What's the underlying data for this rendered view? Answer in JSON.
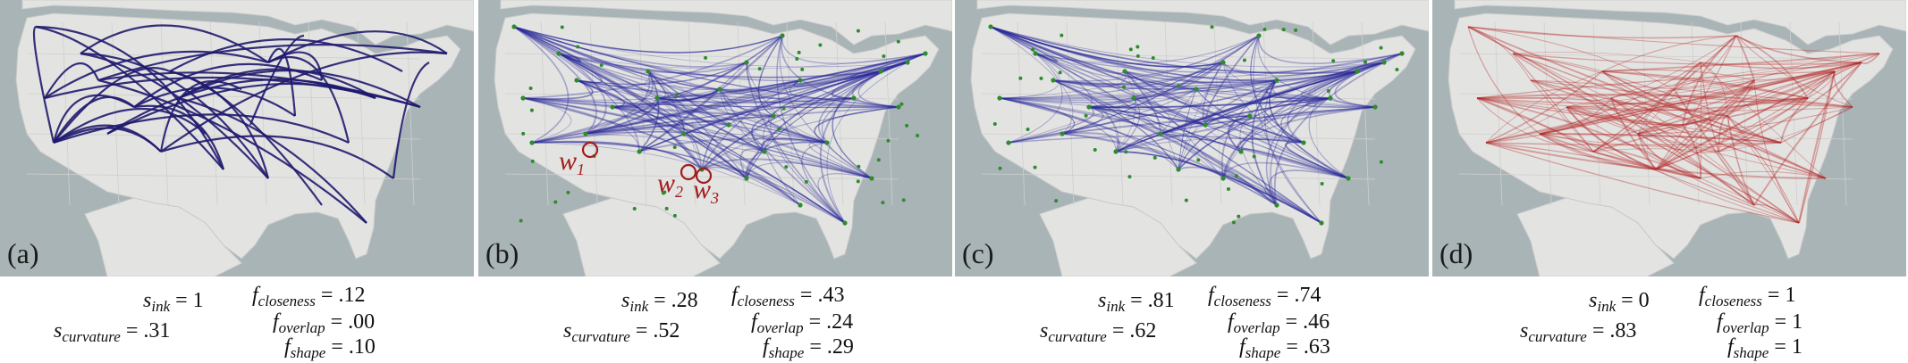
{
  "panels": [
    {
      "label": "(a)",
      "edge_color": "#1f1a6e",
      "nodes": false,
      "metrics": {
        "s_ink": "1",
        "s_curvature": ".31",
        "f_closeness": ".12",
        "f_overlap": ".00",
        "f_shape": ".10"
      }
    },
    {
      "label": "(b)",
      "edge_color": "#2b2a9c",
      "nodes": true,
      "markers": [
        {
          "name": "w",
          "sub": "1"
        },
        {
          "name": "w",
          "sub": "2"
        },
        {
          "name": "w",
          "sub": "3"
        }
      ],
      "metrics": {
        "s_ink": ".28",
        "s_curvature": ".52",
        "f_closeness": ".43",
        "f_overlap": ".24",
        "f_shape": ".29"
      }
    },
    {
      "label": "(c)",
      "edge_color": "#2b2a9c",
      "nodes": true,
      "metrics": {
        "s_ink": ".81",
        "s_curvature": ".62",
        "f_closeness": ".74",
        "f_overlap": ".46",
        "f_shape": ".63"
      }
    },
    {
      "label": "(d)",
      "edge_color": "#b21f1f",
      "nodes": false,
      "metrics": {
        "s_ink": "0",
        "s_curvature": ".83",
        "f_closeness": "1",
        "f_overlap": "1",
        "f_shape": "1"
      }
    }
  ],
  "colors": {
    "map_land": "#e3e3e1",
    "map_water": "#a9b4b6",
    "node": "#2e8b2e",
    "marker": "#a11c1c"
  }
}
